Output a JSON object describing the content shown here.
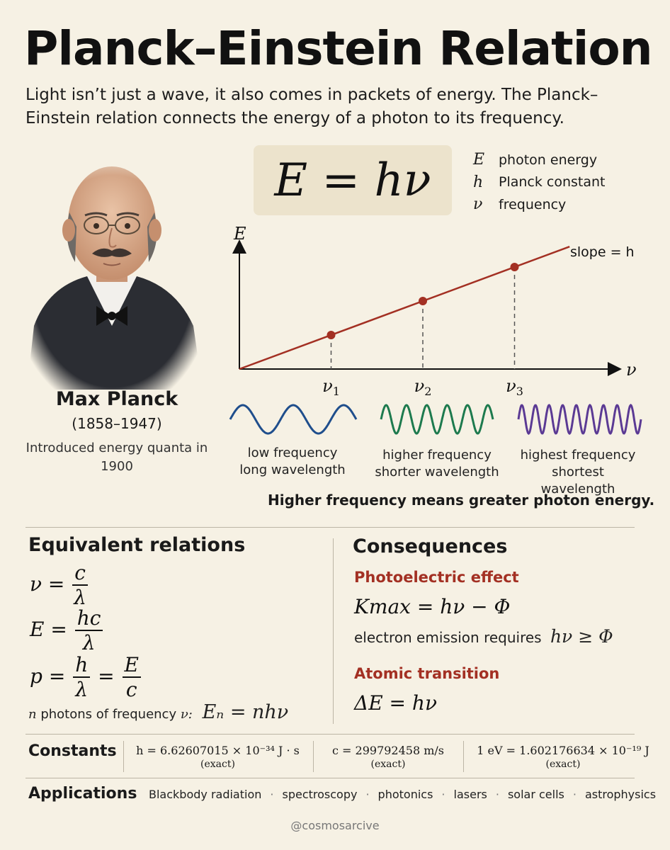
{
  "title": "Planck–Einstein Relation",
  "intro": "Light isn’t just a wave, it also comes in packets of energy. The Planck–Einstein relation connects the energy of a photon to its frequency.",
  "portrait": {
    "name": "Max Planck",
    "years": "(1858–1947)",
    "description": "Introduced energy quanta in 1900"
  },
  "formula": "E = hν",
  "legend": [
    {
      "symbol": "E",
      "text": "photon energy"
    },
    {
      "symbol": "h",
      "text": "Planck constant"
    },
    {
      "symbol": "ν",
      "text": "frequency"
    }
  ],
  "chart_data": {
    "type": "line",
    "xlabel": "ν",
    "ylabel": "E",
    "annotation": "slope = h",
    "tick_labels": [
      "ν1",
      "ν2",
      "ν3"
    ],
    "x": [
      1,
      2,
      3
    ],
    "y": [
      1,
      2,
      3
    ],
    "series": [
      {
        "values": [
          1,
          2,
          3
        ]
      }
    ],
    "colors": {
      "line": "#a33023",
      "points": "#a33023"
    }
  },
  "waves": [
    {
      "line1": "low frequency",
      "line2": "long wavelength",
      "color": "#1f4e8c",
      "cycles": 2.5
    },
    {
      "line1": "higher frequency",
      "line2": "shorter wavelength",
      "color": "#1d7a4e",
      "cycles": 5.5
    },
    {
      "line1": "highest frequency",
      "line2": "shortest wavelength",
      "color": "#5b3a94",
      "cycles": 9
    }
  ],
  "tagline": "Higher frequency means greater photon energy.",
  "equivalent": {
    "title": "Equivalent relations",
    "n_photons_label": "photons of frequency",
    "n_photons_n": "n",
    "n_photons_nu": "ν:",
    "n_photons_formula": "Eₙ = nhν"
  },
  "consequences": {
    "title": "Consequences",
    "photoelectric_title": "Photoelectric effect",
    "photoelectric_formula": "Kmax = hν − Φ",
    "photoelectric_text": "electron emission requires",
    "photoelectric_cond": "hν ≥ Φ",
    "atomic_title": "Atomic transition",
    "atomic_formula": "ΔE = hν"
  },
  "constants": {
    "label": "Constants",
    "items": [
      {
        "value": "h = 6.62607015 × 10⁻³⁴ J · s",
        "note": "(exact)"
      },
      {
        "value": "c = 299792458 m/s",
        "note": "(exact)"
      },
      {
        "value": "1 eV = 1.602176634 × 10⁻¹⁹ J",
        "note": "(exact)"
      }
    ]
  },
  "applications": {
    "label": "Applications",
    "items": [
      "Blackbody radiation",
      "spectroscopy",
      "photonics",
      "lasers",
      "solar cells",
      "astrophysics"
    ]
  },
  "credit": "@cosmosarcive"
}
